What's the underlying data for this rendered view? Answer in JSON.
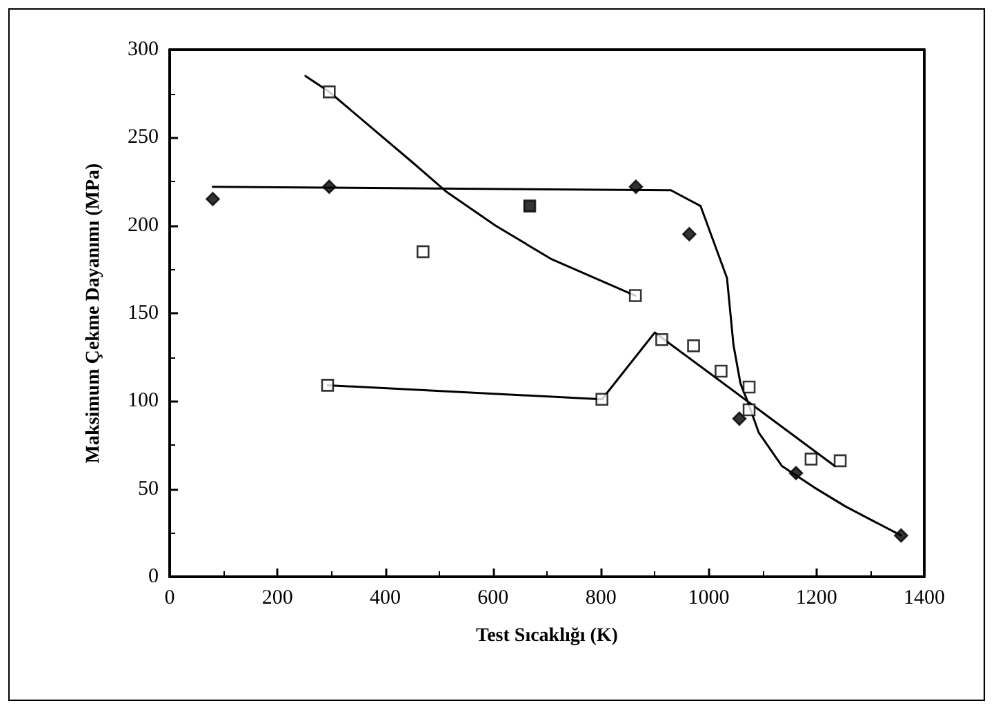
{
  "chart_data": {
    "type": "scatter",
    "xlabel": "Test Sıcaklığı (K)",
    "ylabel": "Maksimum Çekme Dayanımı (MPa)",
    "xlim": [
      0,
      1400
    ],
    "xticks": [
      0,
      200,
      400,
      600,
      800,
      1000,
      1200,
      1400
    ],
    "ylim": [
      0,
      300
    ],
    "yticks": [
      0,
      50,
      100,
      150,
      200,
      250,
      300
    ],
    "grid": false,
    "series": [
      {
        "type": "line",
        "color": "#000000",
        "marker": "none",
        "x": [
          80,
          500,
          930,
          985,
          1034,
          1046,
          1059,
          1072,
          1093,
          1136,
          1195,
          1254,
          1357
        ],
        "values": [
          222,
          221,
          220,
          211,
          170,
          132,
          110,
          100,
          82,
          63,
          51,
          40,
          23.5
        ]
      },
      {
        "type": "line",
        "color": "#000000",
        "marker": "none",
        "x": [
          252,
          296,
          450,
          514,
          604,
          707,
          864
        ],
        "values": [
          285,
          276,
          236,
          219,
          200,
          181,
          160
        ]
      },
      {
        "type": "line",
        "color": "#000000",
        "marker": "none",
        "x": [
          293,
          802,
          900,
          1234
        ],
        "values": [
          109,
          101,
          139,
          63
        ]
      },
      {
        "color": "#000000",
        "marker": "diamond",
        "x": [
          80,
          296,
          865,
          964,
          1057,
          1162,
          1357
        ],
        "values": [
          215,
          222,
          222,
          195,
          90,
          59,
          23.5
        ]
      },
      {
        "color": "#000000",
        "marker": "square",
        "x": [
          668
        ],
        "values": [
          211
        ]
      },
      {
        "color": "#ffffff",
        "marker": "square",
        "x": [
          296,
          470,
          864
        ],
        "values": [
          276,
          185,
          160
        ]
      },
      {
        "color": "#ffffff",
        "marker": "square",
        "x": [
          293,
          802,
          913,
          972,
          1023,
          1075,
          1075,
          1190,
          1244
        ],
        "values": [
          109,
          101,
          135,
          131.5,
          117,
          108,
          95,
          67,
          66
        ]
      }
    ]
  }
}
